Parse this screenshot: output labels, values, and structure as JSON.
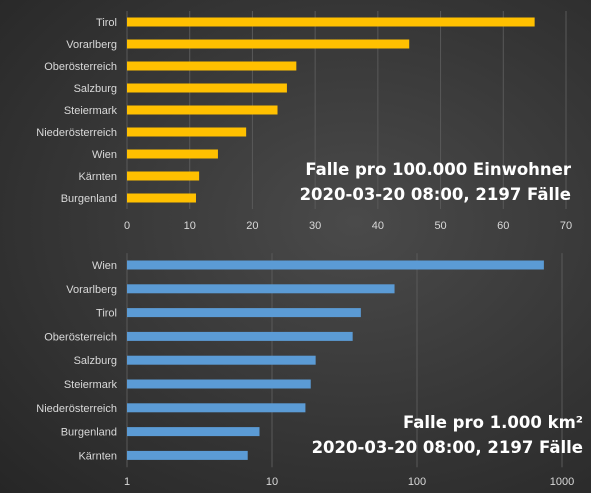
{
  "chart_data": [
    {
      "type": "bar",
      "orientation": "horizontal",
      "title": "Falle pro 100.000 Einwohner",
      "subtitle": "2020-03-20 08:00, 2197 Fälle",
      "categories": [
        "Tirol",
        "Vorarlberg",
        "Oberösterreich",
        "Salzburg",
        "Steiermark",
        "Niederösterreich",
        "Wien",
        "Kärnten",
        "Burgenland"
      ],
      "values": [
        65,
        45,
        27,
        25.5,
        24,
        19,
        14.5,
        11.5,
        11
      ],
      "xlim": [
        0,
        70
      ],
      "xticks": [
        0,
        10,
        20,
        30,
        40,
        50,
        60,
        70
      ],
      "x_scale": "linear",
      "grid": true,
      "color": "#ffc000"
    },
    {
      "type": "bar",
      "orientation": "horizontal",
      "title": "Falle pro 1.000 km²",
      "subtitle": "2020-03-20 08:00, 2197 Fälle",
      "categories": [
        "Wien",
        "Vorarlberg",
        "Tirol",
        "Oberösterreich",
        "Salzburg",
        "Steiermark",
        "Niederösterreich",
        "Burgenland",
        "Kärnten"
      ],
      "values": [
        750,
        70,
        41,
        36,
        20,
        18.5,
        17,
        8.2,
        6.8
      ],
      "xlim": [
        1,
        1000
      ],
      "xticks": [
        1,
        10,
        100,
        1000
      ],
      "x_scale": "log",
      "grid": true,
      "color": "#5b9bd5"
    }
  ]
}
